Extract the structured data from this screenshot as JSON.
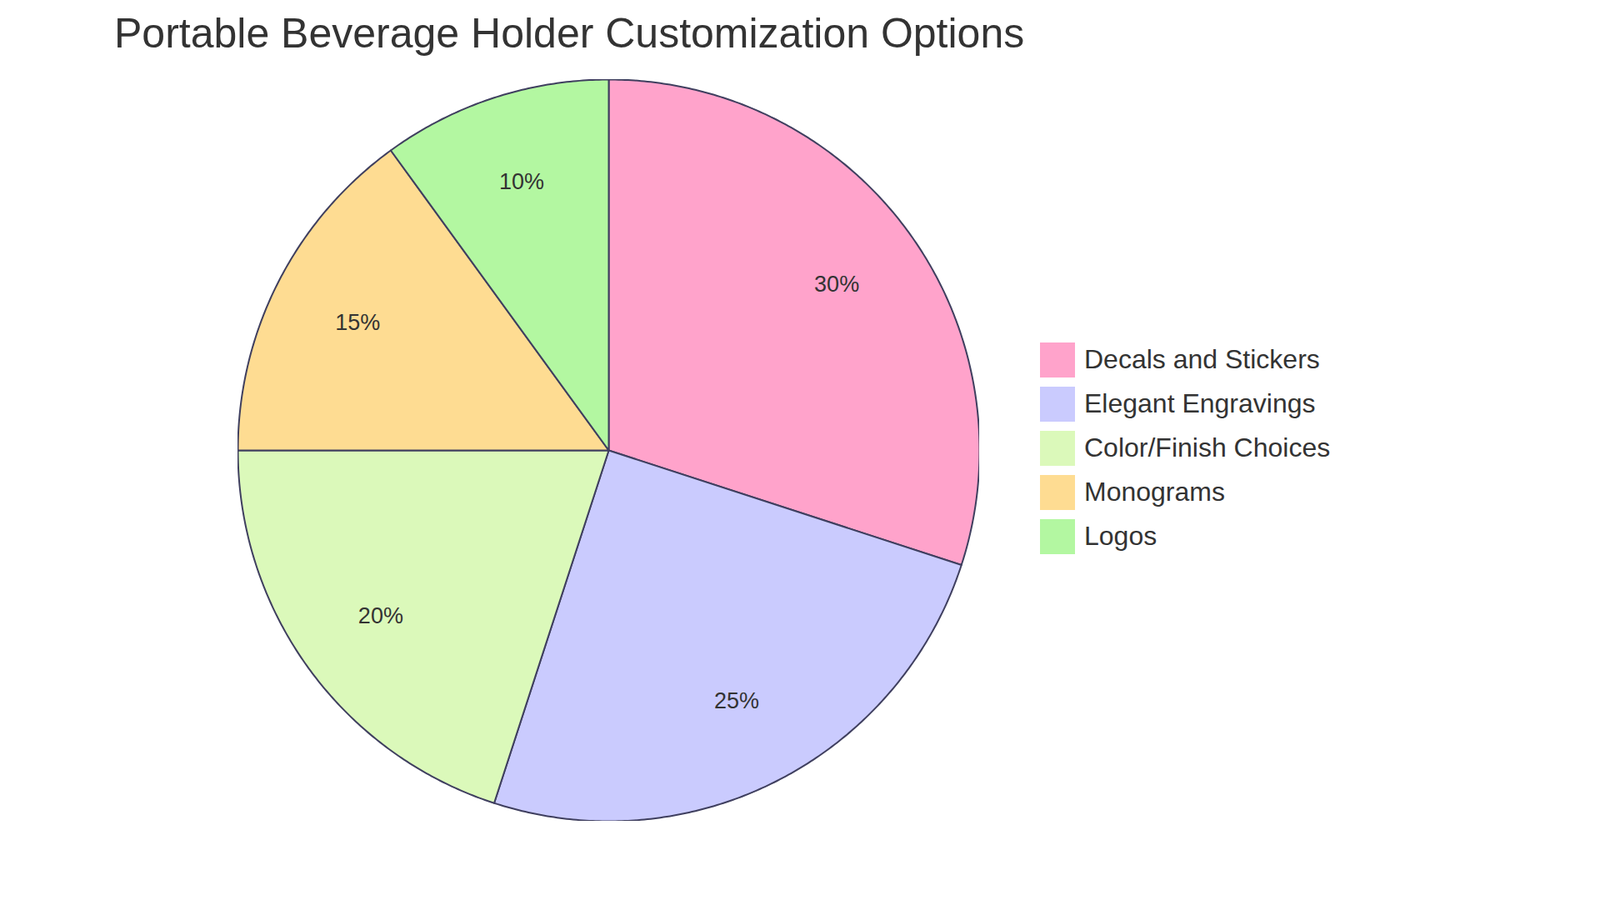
{
  "chart_data": {
    "type": "pie",
    "title": "Portable Beverage Holder Customization Options",
    "categories": [
      "Decals and Stickers",
      "Elegant Engravings",
      "Color/Finish Choices",
      "Monograms",
      "Logos"
    ],
    "values": [
      30,
      25,
      20,
      15,
      10
    ],
    "value_labels": [
      "30%",
      "25%",
      "20%",
      "15%",
      "10%"
    ],
    "colors": [
      "#FFA3CB",
      "#CACBFE",
      "#DBF9BA",
      "#FEDC92",
      "#B3F7A1"
    ],
    "data_labels": true,
    "legend": "right"
  }
}
